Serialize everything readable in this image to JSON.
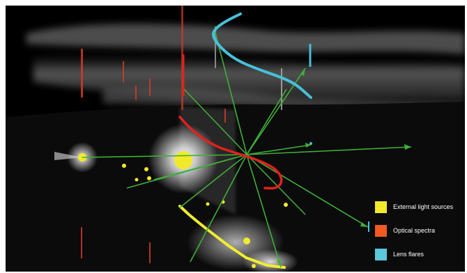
{
  "legend": {
    "items": [
      {
        "label": "External  light sources",
        "color": "#f2e92a",
        "swatch_name": "external-light-sources-swatch"
      },
      {
        "label": "Optical spectra",
        "color": "#f05a22",
        "swatch_name": "optical-spectra-swatch"
      },
      {
        "label": "Lens flares",
        "color": "#5bc8dc",
        "swatch_name": "lens-flares-swatch"
      }
    ]
  },
  "colors": {
    "rays": "#3fae3a",
    "spectra_line": "#e3201b",
    "flare_line": "#46c1d9",
    "light_line": "#f3ec2f",
    "background": "#000000"
  }
}
